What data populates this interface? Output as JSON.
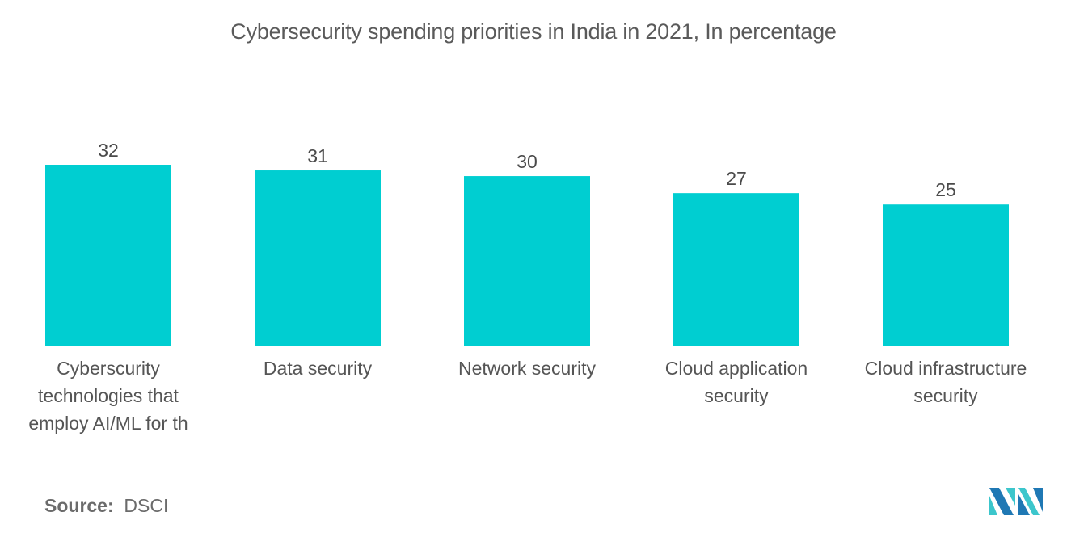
{
  "chart_data": {
    "type": "bar",
    "title": "Cybersecurity spending priorities in India in 2021, In percentage",
    "categories": [
      "Cyberscurity technologies that employ AI/ML for th",
      "Data security",
      "Network security",
      "Cloud application security",
      "Cloud infrastructure security"
    ],
    "category_lines": [
      [
        "Cyberscurity",
        "technologies that",
        "employ AI/ML for th"
      ],
      [
        "Data security"
      ],
      [
        "Network security"
      ],
      [
        "Cloud application",
        "security"
      ],
      [
        "Cloud infrastructure",
        "security"
      ]
    ],
    "values": [
      32,
      31,
      30,
      27,
      25
    ],
    "data_labels": [
      "32",
      "31",
      "30",
      "27",
      "25"
    ],
    "xlabel": "",
    "ylabel": "",
    "ylim": [
      0,
      32
    ],
    "grid": false,
    "legend": "none",
    "bar_color": "#00ced1"
  },
  "footer": {
    "source_label": "Source:",
    "source_value": "DSCI"
  },
  "logo": {
    "name": "mordor-intelligence-logo",
    "colors": [
      "#1f78b4",
      "#3cc6cc"
    ]
  }
}
